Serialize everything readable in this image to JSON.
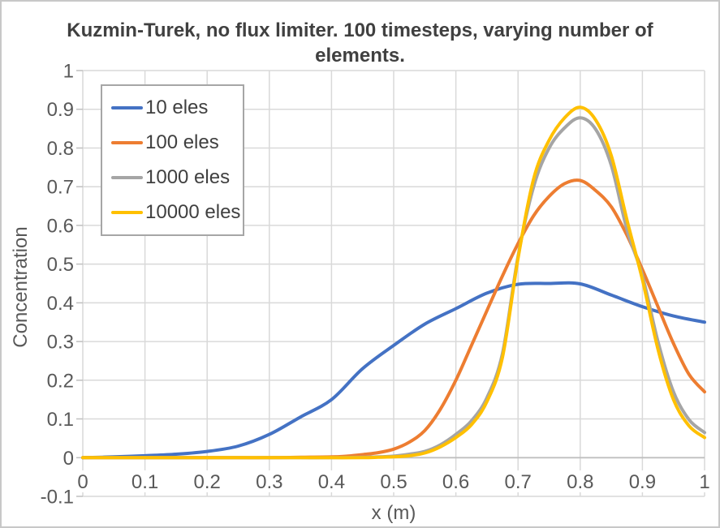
{
  "frame": {
    "background": "#FFFFFF",
    "border_color": "#C8C8C8"
  },
  "chart_data": {
    "type": "line",
    "title": "Kuzmin-Turek, no flux limiter. 100 timesteps, varying number of elements.",
    "title_lines": [
      "Kuzmin-Turek, no flux limiter. 100 timesteps, varying number of",
      "elements."
    ],
    "xlabel": "x (m)",
    "ylabel": "Concentration",
    "xlim": [
      0,
      1
    ],
    "ylim": [
      -0.1,
      1
    ],
    "grid": true,
    "smooth_lines": true,
    "markers": false,
    "legend": {
      "position": "inside-top-left"
    },
    "x_ticks": [
      0,
      0.1,
      0.2,
      0.3,
      0.4,
      0.5,
      0.6,
      0.7,
      0.8,
      0.9,
      1
    ],
    "x_tick_labels": [
      "0",
      "0.1",
      "0.2",
      "0.3",
      "0.4",
      "0.5",
      "0.6",
      "0.7",
      "0.8",
      "0.9",
      "1"
    ],
    "y_ticks": [
      1,
      0.9,
      0.8,
      0.7,
      0.6,
      0.5,
      0.4,
      0.3,
      0.2,
      0.1,
      0,
      -0.1
    ],
    "y_tick_labels": [
      "1",
      "0.9",
      "0.8",
      "0.7",
      "0.6",
      "0.5",
      "0.4",
      "0.3",
      "0.2",
      "0.1",
      "0",
      "-0.1"
    ],
    "series": [
      {
        "name": "10 eles",
        "color": "#4472C4",
        "points": [
          [
            0,
            0
          ],
          [
            0.05,
            0.002
          ],
          [
            0.1,
            0.005
          ],
          [
            0.15,
            0.009
          ],
          [
            0.2,
            0.016
          ],
          [
            0.25,
            0.03
          ],
          [
            0.3,
            0.06
          ],
          [
            0.35,
            0.105
          ],
          [
            0.4,
            0.15
          ],
          [
            0.45,
            0.23
          ],
          [
            0.5,
            0.29
          ],
          [
            0.55,
            0.345
          ],
          [
            0.6,
            0.385
          ],
          [
            0.65,
            0.425
          ],
          [
            0.7,
            0.448
          ],
          [
            0.75,
            0.45
          ],
          [
            0.8,
            0.449
          ],
          [
            0.85,
            0.42
          ],
          [
            0.9,
            0.39
          ],
          [
            0.95,
            0.366
          ],
          [
            1,
            0.35
          ]
        ]
      },
      {
        "name": "100 eles",
        "color": "#ED7D31",
        "points": [
          [
            0,
            0
          ],
          [
            0.05,
            0
          ],
          [
            0.1,
            0
          ],
          [
            0.15,
            0
          ],
          [
            0.2,
            0
          ],
          [
            0.25,
            0
          ],
          [
            0.3,
            0
          ],
          [
            0.35,
            0.001
          ],
          [
            0.4,
            0.002
          ],
          [
            0.425,
            0.004
          ],
          [
            0.45,
            0.008
          ],
          [
            0.475,
            0.013
          ],
          [
            0.5,
            0.022
          ],
          [
            0.525,
            0.04
          ],
          [
            0.55,
            0.07
          ],
          [
            0.575,
            0.125
          ],
          [
            0.6,
            0.2
          ],
          [
            0.625,
            0.29
          ],
          [
            0.65,
            0.38
          ],
          [
            0.675,
            0.47
          ],
          [
            0.7,
            0.553
          ],
          [
            0.725,
            0.625
          ],
          [
            0.75,
            0.675
          ],
          [
            0.775,
            0.708
          ],
          [
            0.8,
            0.716
          ],
          [
            0.825,
            0.69
          ],
          [
            0.85,
            0.648
          ],
          [
            0.875,
            0.575
          ],
          [
            0.9,
            0.486
          ],
          [
            0.925,
            0.39
          ],
          [
            0.95,
            0.295
          ],
          [
            0.975,
            0.215
          ],
          [
            1,
            0.17
          ]
        ]
      },
      {
        "name": "1000 eles",
        "color": "#A5A5A5",
        "points": [
          [
            0,
            0
          ],
          [
            0.05,
            0
          ],
          [
            0.1,
            0
          ],
          [
            0.15,
            0
          ],
          [
            0.2,
            0
          ],
          [
            0.25,
            0
          ],
          [
            0.3,
            0
          ],
          [
            0.35,
            0
          ],
          [
            0.4,
            0
          ],
          [
            0.45,
            0.001
          ],
          [
            0.475,
            0.002
          ],
          [
            0.5,
            0.004
          ],
          [
            0.525,
            0.009
          ],
          [
            0.55,
            0.016
          ],
          [
            0.575,
            0.033
          ],
          [
            0.6,
            0.06
          ],
          [
            0.625,
            0.095
          ],
          [
            0.65,
            0.155
          ],
          [
            0.675,
            0.27
          ],
          [
            0.7,
            0.52
          ],
          [
            0.725,
            0.7
          ],
          [
            0.75,
            0.8
          ],
          [
            0.775,
            0.852
          ],
          [
            0.8,
            0.878
          ],
          [
            0.825,
            0.848
          ],
          [
            0.85,
            0.755
          ],
          [
            0.875,
            0.59
          ],
          [
            0.9,
            0.47
          ],
          [
            0.925,
            0.3
          ],
          [
            0.95,
            0.17
          ],
          [
            0.975,
            0.098
          ],
          [
            1,
            0.065
          ]
        ]
      },
      {
        "name": "10000 eles",
        "color": "#FFC000",
        "points": [
          [
            0,
            0
          ],
          [
            0.05,
            0
          ],
          [
            0.1,
            0
          ],
          [
            0.15,
            0
          ],
          [
            0.2,
            0
          ],
          [
            0.25,
            0
          ],
          [
            0.3,
            0
          ],
          [
            0.35,
            0
          ],
          [
            0.4,
            0
          ],
          [
            0.45,
            0
          ],
          [
            0.475,
            0.001
          ],
          [
            0.5,
            0.002
          ],
          [
            0.525,
            0.005
          ],
          [
            0.55,
            0.012
          ],
          [
            0.575,
            0.028
          ],
          [
            0.6,
            0.052
          ],
          [
            0.625,
            0.085
          ],
          [
            0.65,
            0.145
          ],
          [
            0.675,
            0.26
          ],
          [
            0.7,
            0.515
          ],
          [
            0.725,
            0.72
          ],
          [
            0.75,
            0.82
          ],
          [
            0.775,
            0.878
          ],
          [
            0.8,
            0.905
          ],
          [
            0.825,
            0.872
          ],
          [
            0.85,
            0.78
          ],
          [
            0.875,
            0.615
          ],
          [
            0.9,
            0.46
          ],
          [
            0.925,
            0.28
          ],
          [
            0.95,
            0.15
          ],
          [
            0.975,
            0.082
          ],
          [
            1,
            0.052
          ]
        ]
      }
    ],
    "styles": {
      "gridline_color": "#D9D9D9",
      "axis_line_color": "#BFBFBF",
      "tick_label_color": "#595959",
      "axis_title_color": "#595959",
      "title_color": "#404040",
      "legend_text_color": "#404040",
      "legend_border_color": "#A6A6A6",
      "line_width": 4
    }
  }
}
